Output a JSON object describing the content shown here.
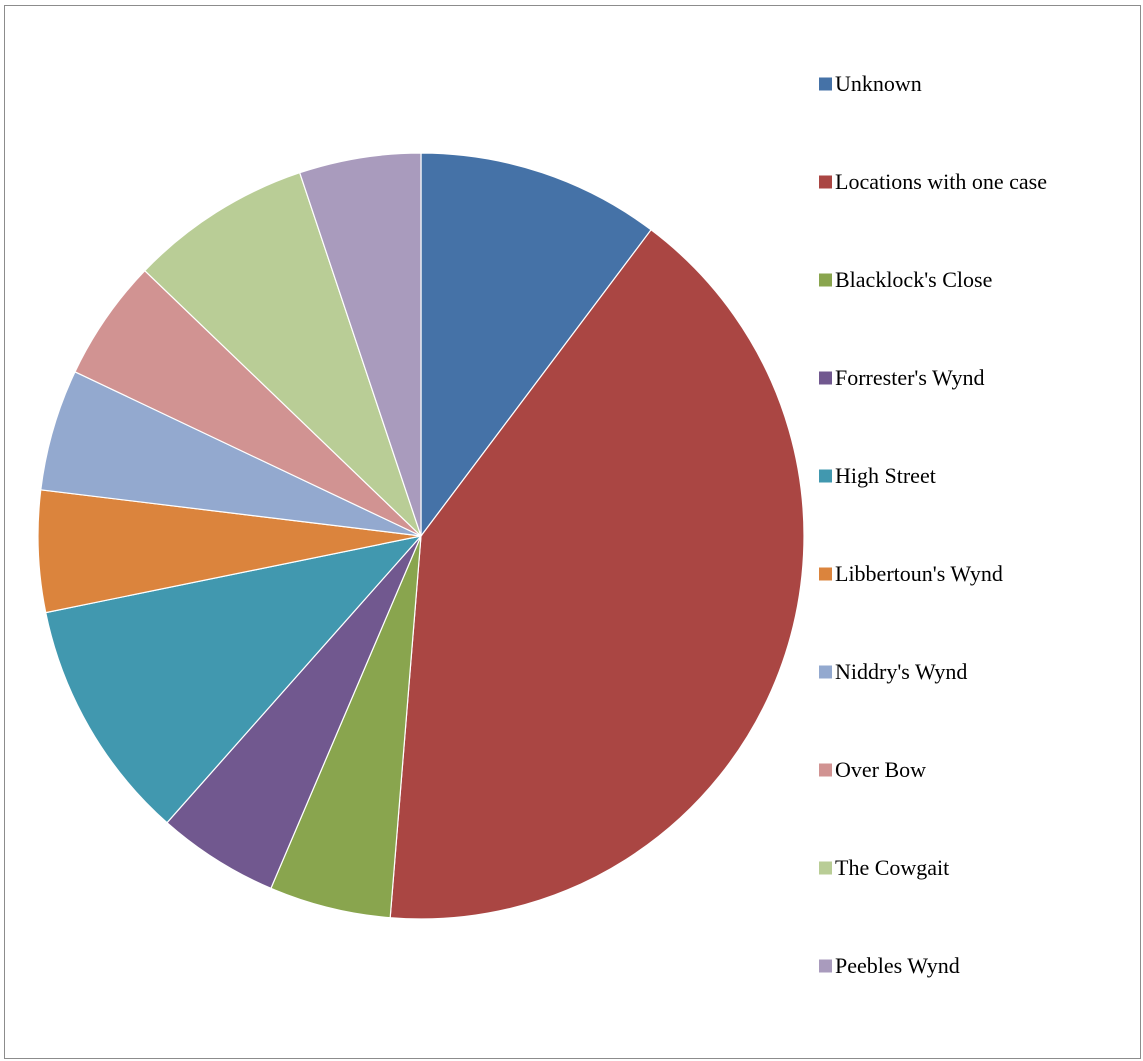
{
  "chart_data": {
    "type": "pie",
    "title": "",
    "legend_position": "right",
    "categories": [
      "Unknown",
      "Locations with one case",
      "Blacklock's Close",
      "Forrester's Wynd",
      "High Street",
      "Libbertoun's Wynd",
      "Niddry's Wynd",
      "Over Bow",
      "The Cowgait",
      "Peebles Wynd"
    ],
    "values": [
      2,
      8,
      1,
      1,
      2,
      1,
      1,
      1,
      1.5,
      1
    ],
    "colors": [
      "#4572a7",
      "#aa4643",
      "#89a54e",
      "#71588f",
      "#4198af",
      "#db843d",
      "#93a9cf",
      "#d19392",
      "#b9cd96",
      "#a99bbd"
    ],
    "start_angle_deg": 0,
    "direction": "clockwise"
  }
}
